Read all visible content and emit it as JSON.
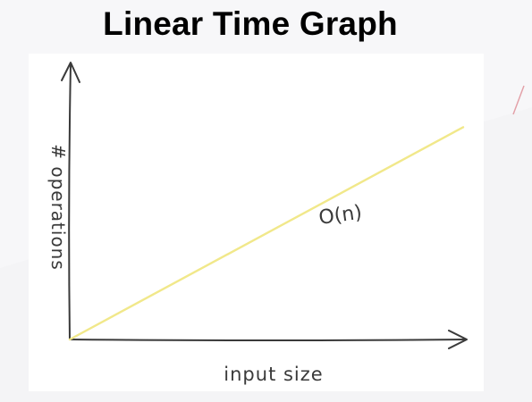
{
  "slide": {
    "title": "Linear Time Graph"
  },
  "chart_data": {
    "type": "line",
    "title": "",
    "xlabel": "input size",
    "ylabel": "# operations",
    "xlim": [
      0,
      10
    ],
    "ylim": [
      0,
      10
    ],
    "grid": false,
    "legend": "none",
    "series": [
      {
        "name": "",
        "color": "#f1e88a",
        "x": [
          0,
          10
        ],
        "y": [
          0,
          8.8
        ]
      }
    ],
    "annotations": [
      {
        "text": "O(n)",
        "x": 6.9,
        "y": 4.9
      }
    ]
  },
  "colors": {
    "line": "#f1e88a",
    "axes": "#3a3a3a",
    "accent_mark": "#e3a0a8"
  }
}
